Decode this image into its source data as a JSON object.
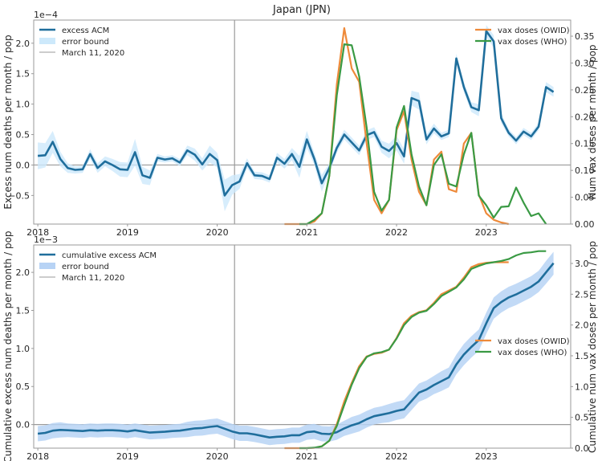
{
  "title": "Japan (JPN)",
  "colors": {
    "acm": "#1f6e9c",
    "acm_band_top": "#cde9fb",
    "acm_band_bottom": "#b7d3f5",
    "owid": "#ee8a3a",
    "who": "#3a9a44",
    "marker_line": "#9a9a9a",
    "axis": "#9a9a9a"
  },
  "chart_data": [
    {
      "type": "line",
      "title": "Japan (JPN)",
      "xlabel": "",
      "ylabel": "Excess num deaths per month / pop",
      "ylabel_right": "Num vax doses per month / pop",
      "y_multiplier": "1e−4",
      "xlim": [
        "2017-12",
        "2023-12"
      ],
      "ylim": [
        -0.97,
        2.38
      ],
      "ylim_right": [
        0.0,
        0.38
      ],
      "x_ticks": [
        "2018",
        "2019",
        "2020",
        "2021",
        "2022",
        "2023"
      ],
      "y_ticks": [
        "−0.5",
        "0.0",
        "0.5",
        "1.0",
        "1.5",
        "2.0"
      ],
      "y_tick_values": [
        -0.5,
        0.0,
        0.5,
        1.0,
        1.5,
        2.0
      ],
      "y_ticks_right": [
        "0.00",
        "0.05",
        "0.10",
        "0.15",
        "0.20",
        "0.25",
        "0.30",
        "0.35"
      ],
      "y_tick_values_right": [
        0.0,
        0.05,
        0.1,
        0.15,
        0.2,
        0.25,
        0.3,
        0.35
      ],
      "marker_date": "2020-03-11",
      "zero_line_left": 0.0,
      "legend_left": {
        "placement": "top-left",
        "entries": [
          "excess ACM",
          "error bound",
          "March 11, 2020"
        ]
      },
      "legend_right": {
        "placement": "top-right",
        "entries": [
          "vax doses (OWID)",
          "vax doses (WHO)"
        ]
      },
      "series": [
        {
          "name": "excess ACM",
          "axis": "left",
          "start": "2018-01",
          "values": [
            0.15,
            0.16,
            0.38,
            0.1,
            -0.05,
            -0.08,
            -0.07,
            0.18,
            -0.05,
            0.06,
            0.0,
            -0.07,
            -0.08,
            0.21,
            -0.17,
            -0.21,
            0.12,
            0.09,
            0.11,
            0.04,
            0.24,
            0.17,
            0.01,
            0.18,
            0.08,
            -0.5,
            -0.33,
            -0.27,
            0.03,
            -0.17,
            -0.18,
            -0.23,
            0.12,
            0.02,
            0.18,
            -0.03,
            0.42,
            0.1,
            -0.3,
            -0.05,
            0.28,
            0.5,
            0.37,
            0.24,
            0.49,
            0.54,
            0.3,
            0.23,
            0.36,
            0.14,
            1.1,
            1.05,
            0.42,
            0.6,
            0.47,
            0.52,
            1.75,
            1.28,
            0.95,
            0.9,
            2.2,
            2.03,
            0.77,
            0.53,
            0.4,
            0.55,
            0.47,
            0.63,
            1.28,
            1.2
          ],
          "error": [
            0.22,
            0.2,
            0.18,
            0.12,
            0.08,
            0.06,
            0.06,
            0.08,
            0.08,
            0.08,
            0.1,
            0.12,
            0.12,
            0.22,
            0.14,
            0.12,
            0.06,
            0.05,
            0.05,
            0.06,
            0.08,
            0.1,
            0.1,
            0.14,
            0.12,
            0.26,
            0.16,
            0.12,
            0.08,
            0.06,
            0.06,
            0.06,
            0.08,
            0.08,
            0.1,
            0.18,
            0.14,
            0.1,
            0.14,
            0.08,
            0.08,
            0.08,
            0.08,
            0.08,
            0.08,
            0.08,
            0.1,
            0.12,
            0.12,
            0.12,
            0.12,
            0.14,
            0.08,
            0.08,
            0.06,
            0.06,
            0.08,
            0.08,
            0.08,
            0.1,
            0.1,
            0.1,
            0.08,
            0.06,
            0.06,
            0.06,
            0.06,
            0.06,
            0.08,
            0.08
          ]
        },
        {
          "name": "vax doses (OWID)",
          "axis": "right",
          "start": "2020-10",
          "values": [
            0,
            0,
            0,
            0,
            0.005,
            0.02,
            0.09,
            0.26,
            0.365,
            0.29,
            0.265,
            0.15,
            0.045,
            0.02,
            0.045,
            0.175,
            0.21,
            0.12,
            0.06,
            0.035,
            0.12,
            0.135,
            0.065,
            0.06,
            0.15,
            0.17,
            0.055,
            0.02,
            0.008,
            0.003,
            0.0
          ]
        },
        {
          "name": "vax doses (WHO)",
          "axis": "right",
          "start": "2020-12",
          "values": [
            0,
            0,
            0.008,
            0.02,
            0.09,
            0.24,
            0.335,
            0.333,
            0.275,
            0.18,
            0.06,
            0.025,
            0.045,
            0.18,
            0.22,
            0.13,
            0.07,
            0.035,
            0.11,
            0.13,
            0.075,
            0.07,
            0.13,
            0.17,
            0.053,
            0.035,
            0.012,
            0.032,
            0.033,
            0.068,
            0.04,
            0.015,
            0.02,
            0.0
          ]
        }
      ]
    },
    {
      "type": "line",
      "title": "",
      "xlabel": "",
      "ylabel": "Cumulative excess num deaths per month / pop",
      "ylabel_right": "Cumulative num vax doses per month / pop",
      "y_multiplier": "1e−3",
      "xlim": [
        "2017-12",
        "2023-12"
      ],
      "ylim": [
        -0.31,
        2.36
      ],
      "ylim_right": [
        0.0,
        3.3
      ],
      "x_ticks": [
        "2018",
        "2019",
        "2020",
        "2021",
        "2022",
        "2023"
      ],
      "y_ticks": [
        "0.0",
        "0.5",
        "1.0",
        "1.5",
        "2.0"
      ],
      "y_tick_values": [
        0.0,
        0.5,
        1.0,
        1.5,
        2.0
      ],
      "y_ticks_right": [
        "0.0",
        "0.5",
        "1.0",
        "1.5",
        "2.0",
        "2.5",
        "3.0"
      ],
      "y_tick_values_right": [
        0.0,
        0.5,
        1.0,
        1.5,
        2.0,
        2.5,
        3.0
      ],
      "marker_date": "2020-03-11",
      "zero_line_left": 0.0,
      "legend_left": {
        "placement": "top-left",
        "entries": [
          "cumulative excess ACM",
          "error bound",
          "March 11, 2020"
        ]
      },
      "legend_right": {
        "placement": "center-right",
        "entries": [
          "vax doses (OWID)",
          "vax doses (WHO)"
        ]
      },
      "series": [
        {
          "name": "cumulative excess ACM",
          "axis": "left",
          "start": "2018-01",
          "values": [
            -0.12,
            -0.11,
            -0.08,
            -0.07,
            -0.075,
            -0.08,
            -0.085,
            -0.075,
            -0.08,
            -0.075,
            -0.075,
            -0.08,
            -0.09,
            -0.075,
            -0.09,
            -0.105,
            -0.1,
            -0.095,
            -0.085,
            -0.08,
            -0.065,
            -0.05,
            -0.045,
            -0.03,
            -0.02,
            -0.055,
            -0.09,
            -0.115,
            -0.115,
            -0.13,
            -0.15,
            -0.17,
            -0.16,
            -0.155,
            -0.14,
            -0.14,
            -0.1,
            -0.09,
            -0.12,
            -0.125,
            -0.1,
            -0.05,
            -0.01,
            0.02,
            0.07,
            0.11,
            0.13,
            0.15,
            0.18,
            0.2,
            0.31,
            0.42,
            0.46,
            0.52,
            0.57,
            0.62,
            0.79,
            0.92,
            1.02,
            1.11,
            1.33,
            1.53,
            1.61,
            1.67,
            1.71,
            1.76,
            1.81,
            1.88,
            2.0,
            2.12
          ],
          "error": [
            0.1,
            0.1,
            0.1,
            0.1,
            0.09,
            0.09,
            0.09,
            0.09,
            0.09,
            0.09,
            0.09,
            0.09,
            0.09,
            0.09,
            0.09,
            0.09,
            0.09,
            0.09,
            0.09,
            0.09,
            0.1,
            0.1,
            0.1,
            0.1,
            0.1,
            0.1,
            0.1,
            0.1,
            0.1,
            0.1,
            0.1,
            0.1,
            0.1,
            0.1,
            0.1,
            0.1,
            0.1,
            0.1,
            0.1,
            0.1,
            0.1,
            0.1,
            0.11,
            0.11,
            0.11,
            0.11,
            0.11,
            0.12,
            0.12,
            0.12,
            0.12,
            0.12,
            0.12,
            0.12,
            0.13,
            0.13,
            0.13,
            0.14,
            0.14,
            0.14,
            0.14,
            0.14,
            0.14,
            0.14,
            0.14,
            0.14,
            0.14,
            0.14,
            0.15,
            0.15
          ]
        },
        {
          "name": "vax doses (OWID)",
          "axis": "right",
          "start": "2020-10",
          "values": [
            0,
            0,
            0,
            0,
            0.005,
            0.03,
            0.12,
            0.39,
            0.76,
            1.06,
            1.33,
            1.49,
            1.53,
            1.55,
            1.6,
            1.79,
            2.03,
            2.15,
            2.21,
            2.24,
            2.36,
            2.5,
            2.56,
            2.62,
            2.77,
            2.94,
            2.99,
            3.01,
            3.02,
            3.02,
            3.02
          ]
        },
        {
          "name": "vax doses (WHO)",
          "axis": "right",
          "start": "2020-12",
          "values": [
            0,
            0,
            0.008,
            0.03,
            0.12,
            0.36,
            0.7,
            1.03,
            1.3,
            1.48,
            1.54,
            1.56,
            1.6,
            1.78,
            2.0,
            2.13,
            2.2,
            2.23,
            2.34,
            2.47,
            2.54,
            2.61,
            2.74,
            2.91,
            2.96,
            3.0,
            3.02,
            3.04,
            3.07,
            3.13,
            3.17,
            3.18,
            3.2,
            3.2
          ]
        }
      ]
    }
  ]
}
